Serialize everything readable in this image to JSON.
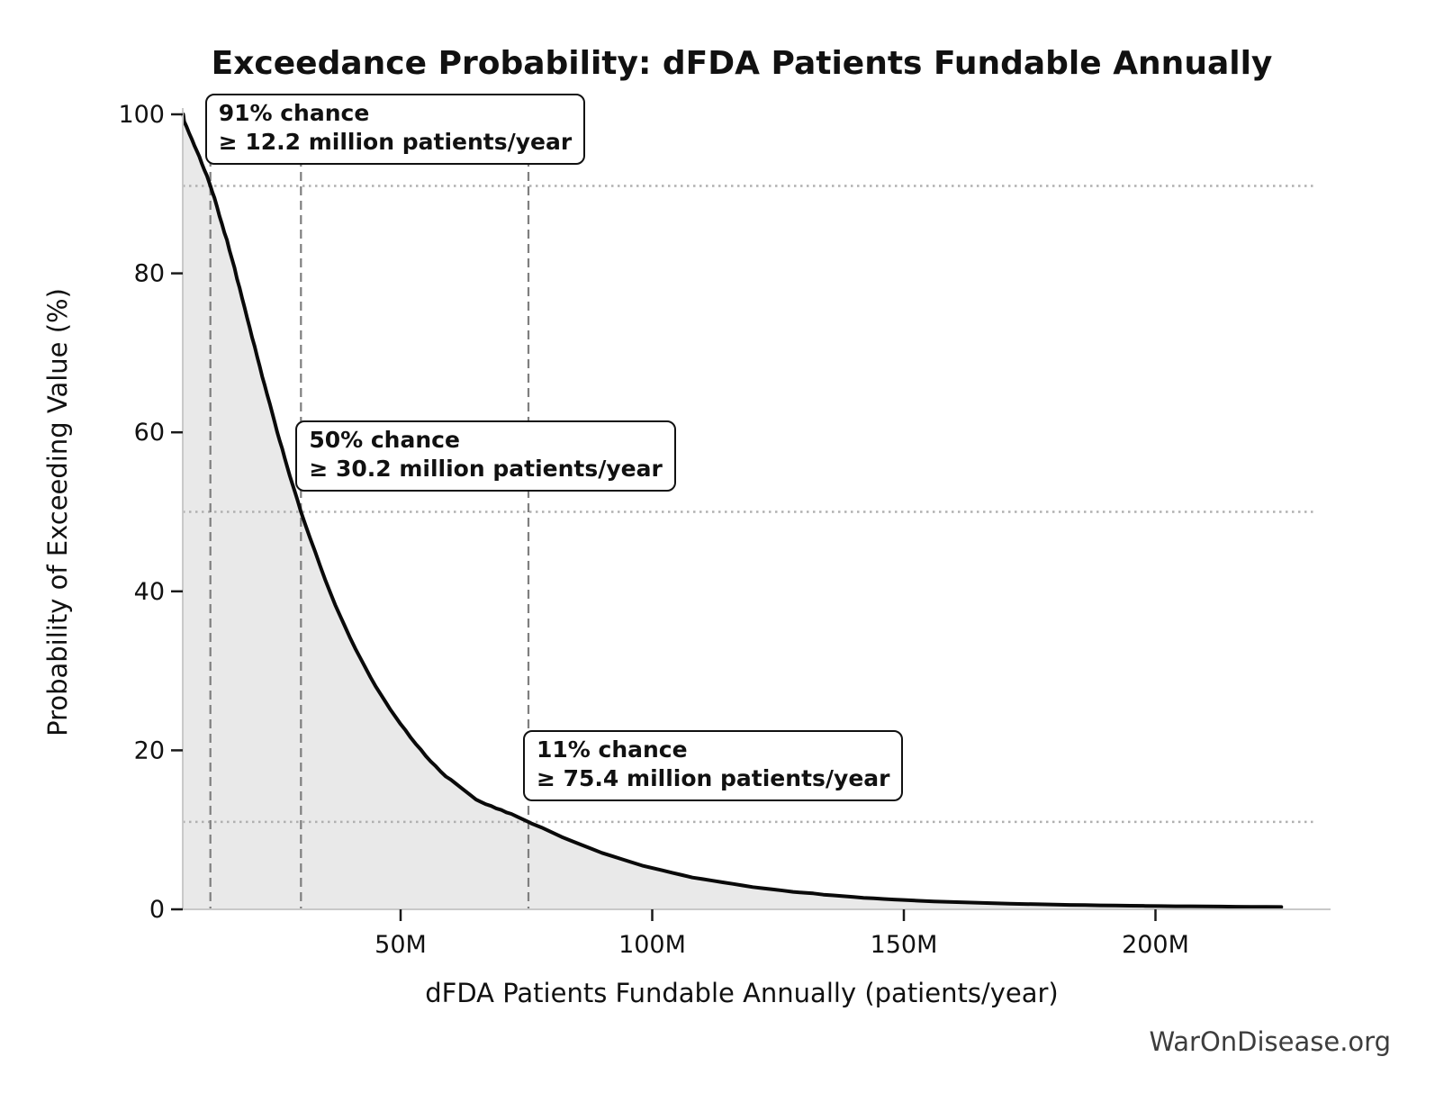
{
  "footer": {
    "watermark": "WarOnDisease.org"
  },
  "chart_data": {
    "type": "area",
    "title": "Exceedance Probability: dFDA Patients Fundable Annually",
    "xlabel": "dFDA Patients Fundable Annually (patients/year)",
    "ylabel": "Probability of Exceeding Value (%)",
    "x_unit": "millions of patients per year",
    "xlim_millions": [
      5,
      235
    ],
    "ylim_pct": [
      0,
      102
    ],
    "grid_on": true,
    "legend": null,
    "x_ticks": [
      {
        "value_millions": 50,
        "label": "50M"
      },
      {
        "value_millions": 100,
        "label": "100M"
      },
      {
        "value_millions": 150,
        "label": "150M"
      },
      {
        "value_millions": 200,
        "label": "200M"
      }
    ],
    "y_ticks": [
      {
        "value_pct": 0,
        "label": "0"
      },
      {
        "value_pct": 20,
        "label": "20"
      },
      {
        "value_pct": 40,
        "label": "40"
      },
      {
        "value_pct": 60,
        "label": "60"
      },
      {
        "value_pct": 80,
        "label": "80"
      },
      {
        "value_pct": 100,
        "label": "100"
      }
    ],
    "annotations": [
      {
        "probability_pct": 91,
        "value_millions": 12.2,
        "line1": "91% chance",
        "line2": "≥ 12.2 million patients/year"
      },
      {
        "probability_pct": 50,
        "value_millions": 30.2,
        "line1": "50% chance",
        "line2": "≥ 30.2 million patients/year"
      },
      {
        "probability_pct": 11,
        "value_millions": 75.4,
        "line1": "11% chance",
        "line2": "≥ 75.4 million patients/year"
      }
    ],
    "grid": {
      "horizontal_dotted_at_pct": [
        91,
        50,
        11
      ],
      "vertical_dashed_at_millions": [
        12.2,
        30.2,
        75.4
      ]
    },
    "curve_points_millions_pct": [
      [
        6.8,
        100
      ],
      [
        7,
        99.1
      ],
      [
        7.5,
        98.4
      ],
      [
        8,
        97.6
      ],
      [
        8.5,
        96.9
      ],
      [
        9,
        96.1
      ],
      [
        9.5,
        95.4
      ],
      [
        10,
        94.7
      ],
      [
        10.5,
        93.8
      ],
      [
        11,
        93.0
      ],
      [
        11.5,
        92.3
      ],
      [
        12.2,
        91.0
      ],
      [
        12.6,
        90.2
      ],
      [
        13,
        89.5
      ],
      [
        13.5,
        88.4
      ],
      [
        14,
        87.2
      ],
      [
        14.5,
        86.2
      ],
      [
        15,
        85.1
      ],
      [
        15.5,
        84.2
      ],
      [
        16,
        82.9
      ],
      [
        16.5,
        81.8
      ],
      [
        17,
        80.7
      ],
      [
        17.5,
        79.3
      ],
      [
        18,
        78.2
      ],
      [
        18.5,
        76.9
      ],
      [
        19,
        75.7
      ],
      [
        19.5,
        74.4
      ],
      [
        20,
        73.2
      ],
      [
        20.5,
        71.9
      ],
      [
        21,
        70.8
      ],
      [
        21.5,
        69.5
      ],
      [
        22,
        68.3
      ],
      [
        22.5,
        67.0
      ],
      [
        23,
        65.9
      ],
      [
        23.5,
        64.7
      ],
      [
        24,
        63.6
      ],
      [
        24.5,
        62.4
      ],
      [
        25,
        61.2
      ],
      [
        25.5,
        60.0
      ],
      [
        26,
        58.9
      ],
      [
        26.5,
        57.9
      ],
      [
        27,
        56.7
      ],
      [
        27.5,
        55.6
      ],
      [
        28,
        54.5
      ],
      [
        28.5,
        53.5
      ],
      [
        29,
        52.5
      ],
      [
        29.5,
        51.5
      ],
      [
        30.2,
        50.0
      ],
      [
        31,
        48.5
      ],
      [
        32,
        46.7
      ],
      [
        33,
        45.0
      ],
      [
        34,
        43.2
      ],
      [
        35,
        41.5
      ],
      [
        36,
        39.9
      ],
      [
        37,
        38.3
      ],
      [
        38,
        36.9
      ],
      [
        39,
        35.5
      ],
      [
        40,
        34.1
      ],
      [
        41,
        32.8
      ],
      [
        42,
        31.6
      ],
      [
        43,
        30.4
      ],
      [
        44,
        29.2
      ],
      [
        45,
        28.1
      ],
      [
        46,
        27.1
      ],
      [
        47,
        26.1
      ],
      [
        48,
        25.1
      ],
      [
        49,
        24.2
      ],
      [
        50,
        23.3
      ],
      [
        51,
        22.5
      ],
      [
        52,
        21.6
      ],
      [
        53,
        20.8
      ],
      [
        54,
        20.1
      ],
      [
        55,
        19.3
      ],
      [
        56,
        18.6
      ],
      [
        57,
        18.0
      ],
      [
        58,
        17.3
      ],
      [
        59,
        16.7
      ],
      [
        60,
        16.3
      ],
      [
        61,
        15.8
      ],
      [
        62,
        15.3
      ],
      [
        63,
        14.8
      ],
      [
        64,
        14.3
      ],
      [
        65,
        13.8
      ],
      [
        66,
        13.5
      ],
      [
        67,
        13.2
      ],
      [
        68,
        13.0
      ],
      [
        69,
        12.7
      ],
      [
        70,
        12.5
      ],
      [
        71,
        12.2
      ],
      [
        72,
        12.0
      ],
      [
        73,
        11.7
      ],
      [
        74,
        11.4
      ],
      [
        75.4,
        11.0
      ],
      [
        76,
        10.8
      ],
      [
        78,
        10.3
      ],
      [
        80,
        9.7
      ],
      [
        82,
        9.1
      ],
      [
        84,
        8.6
      ],
      [
        86,
        8.1
      ],
      [
        88,
        7.6
      ],
      [
        90,
        7.1
      ],
      [
        92,
        6.7
      ],
      [
        94,
        6.3
      ],
      [
        96,
        5.9
      ],
      [
        98,
        5.5
      ],
      [
        100,
        5.2
      ],
      [
        102,
        4.9
      ],
      [
        104,
        4.6
      ],
      [
        106,
        4.3
      ],
      [
        108,
        4.0
      ],
      [
        110,
        3.8
      ],
      [
        112,
        3.6
      ],
      [
        114,
        3.4
      ],
      [
        116,
        3.2
      ],
      [
        118,
        3.0
      ],
      [
        120,
        2.8
      ],
      [
        122,
        2.65
      ],
      [
        124,
        2.5
      ],
      [
        126,
        2.35
      ],
      [
        128,
        2.2
      ],
      [
        130,
        2.1
      ],
      [
        132,
        2.0
      ],
      [
        134,
        1.85
      ],
      [
        136,
        1.75
      ],
      [
        138,
        1.65
      ],
      [
        140,
        1.55
      ],
      [
        142,
        1.45
      ],
      [
        144,
        1.38
      ],
      [
        146,
        1.3
      ],
      [
        148,
        1.24
      ],
      [
        150,
        1.18
      ],
      [
        153,
        1.08
      ],
      [
        156,
        1.0
      ],
      [
        159,
        0.93
      ],
      [
        162,
        0.87
      ],
      [
        165,
        0.81
      ],
      [
        168,
        0.76
      ],
      [
        171,
        0.71
      ],
      [
        174,
        0.67
      ],
      [
        177,
        0.63
      ],
      [
        180,
        0.59
      ],
      [
        183,
        0.56
      ],
      [
        186,
        0.53
      ],
      [
        189,
        0.5
      ],
      [
        192,
        0.48
      ],
      [
        195,
        0.45
      ],
      [
        198,
        0.43
      ],
      [
        201,
        0.41
      ],
      [
        204,
        0.39
      ],
      [
        207,
        0.38
      ],
      [
        210,
        0.36
      ],
      [
        213,
        0.35
      ],
      [
        216,
        0.33
      ],
      [
        219,
        0.32
      ],
      [
        222,
        0.31
      ],
      [
        225,
        0.3
      ]
    ],
    "colors": {
      "curve": "#0a0a0a",
      "fill": "#e9e9e9",
      "dashed_line": "#7f7f7f",
      "dotted_line": "#b0b0b0",
      "spine": "#c9c9c9",
      "tick": "#1a1a1a",
      "text": "#111111",
      "watermark": "#3d3d3d"
    }
  }
}
